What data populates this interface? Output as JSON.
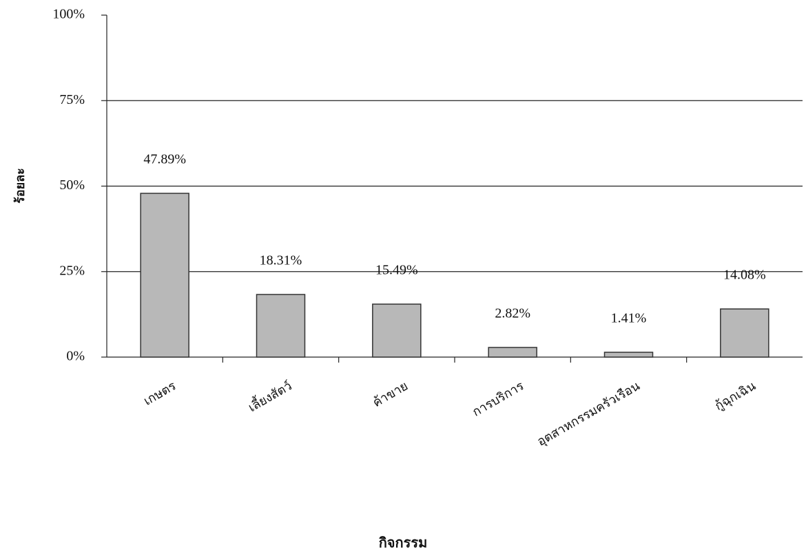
{
  "chart_data": {
    "type": "bar",
    "x_label": "กิจกรรม",
    "y_label": "ร้อยละ",
    "categories": [
      "เกษตร",
      "เลี้ยงสัตว์",
      "ค้าขาย",
      "การบริการ",
      "อุตสาหกรรมครัวเรือน",
      "กู้ฉุกเฉิน"
    ],
    "values": [
      47.89,
      18.31,
      15.49,
      2.82,
      1.41,
      14.08
    ],
    "value_labels": [
      "47.89%",
      "18.31%",
      "15.49%",
      "2.82%",
      "1.41%",
      "14.08%"
    ],
    "color": "#b8b8b8",
    "ylim": [
      0,
      100
    ],
    "yticks": [
      {
        "value": 0,
        "label": "0%"
      },
      {
        "value": 25,
        "label": "25%"
      },
      {
        "value": 50,
        "label": "50%"
      },
      {
        "value": 75,
        "label": "75%"
      },
      {
        "value": 100,
        "label": "100%"
      }
    ],
    "grid": true
  }
}
